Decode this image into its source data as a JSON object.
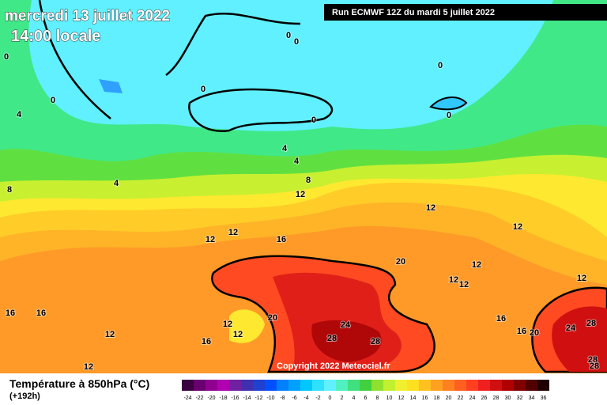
{
  "header": {
    "date": "mercredi 13 juillet 2022",
    "time": "14:00 locale",
    "run": "Run ECMWF 12Z du mardi 5 juillet 2022",
    "copyright": "Copyright 2022 Meteociel.fr"
  },
  "footer": {
    "title": "Température à 850hPa (°C)",
    "lead": "(+192h)"
  },
  "scale": [
    {
      "label": -24,
      "color": "#3a0040"
    },
    {
      "label": -22,
      "color": "#6a0070"
    },
    {
      "label": -20,
      "color": "#900090"
    },
    {
      "label": -18,
      "color": "#b000b0"
    },
    {
      "label": -16,
      "color": "#7020a0"
    },
    {
      "label": -14,
      "color": "#4030b0"
    },
    {
      "label": -12,
      "color": "#2040d0"
    },
    {
      "label": -10,
      "color": "#0050ff"
    },
    {
      "label": -8,
      "color": "#0080ff"
    },
    {
      "label": -6,
      "color": "#00a0ff"
    },
    {
      "label": -4,
      "color": "#00c8ff"
    },
    {
      "label": -2,
      "color": "#30e0ff"
    },
    {
      "label": 0,
      "color": "#60f0ff"
    },
    {
      "label": 2,
      "color": "#50f0c0"
    },
    {
      "label": 4,
      "color": "#40e080"
    },
    {
      "label": 6,
      "color": "#40d040"
    },
    {
      "label": 8,
      "color": "#90e030"
    },
    {
      "label": 10,
      "color": "#c0f030"
    },
    {
      "label": 12,
      "color": "#f0f030"
    },
    {
      "label": 14,
      "color": "#ffe020"
    },
    {
      "label": 16,
      "color": "#ffc020"
    },
    {
      "label": 18,
      "color": "#ffa020"
    },
    {
      "label": 20,
      "color": "#ff8020"
    },
    {
      "label": 22,
      "color": "#ff6020"
    },
    {
      "label": 24,
      "color": "#ff4020"
    },
    {
      "label": 26,
      "color": "#f02020"
    },
    {
      "label": 28,
      "color": "#d01010"
    },
    {
      "label": 30,
      "color": "#b00000"
    },
    {
      "label": 32,
      "color": "#800000"
    },
    {
      "label": 34,
      "color": "#500000"
    },
    {
      "label": 36,
      "color": "#200000"
    }
  ],
  "contour_labels": [
    0,
    0,
    0,
    0,
    0,
    0,
    4,
    0,
    0,
    4,
    4,
    8,
    4,
    8,
    12,
    12,
    12,
    12,
    16,
    12,
    20,
    12,
    12,
    12,
    12,
    16,
    16,
    20,
    12,
    12,
    24,
    16,
    16,
    20,
    24,
    28,
    12,
    16,
    28,
    28,
    28,
    28,
    12
  ]
}
